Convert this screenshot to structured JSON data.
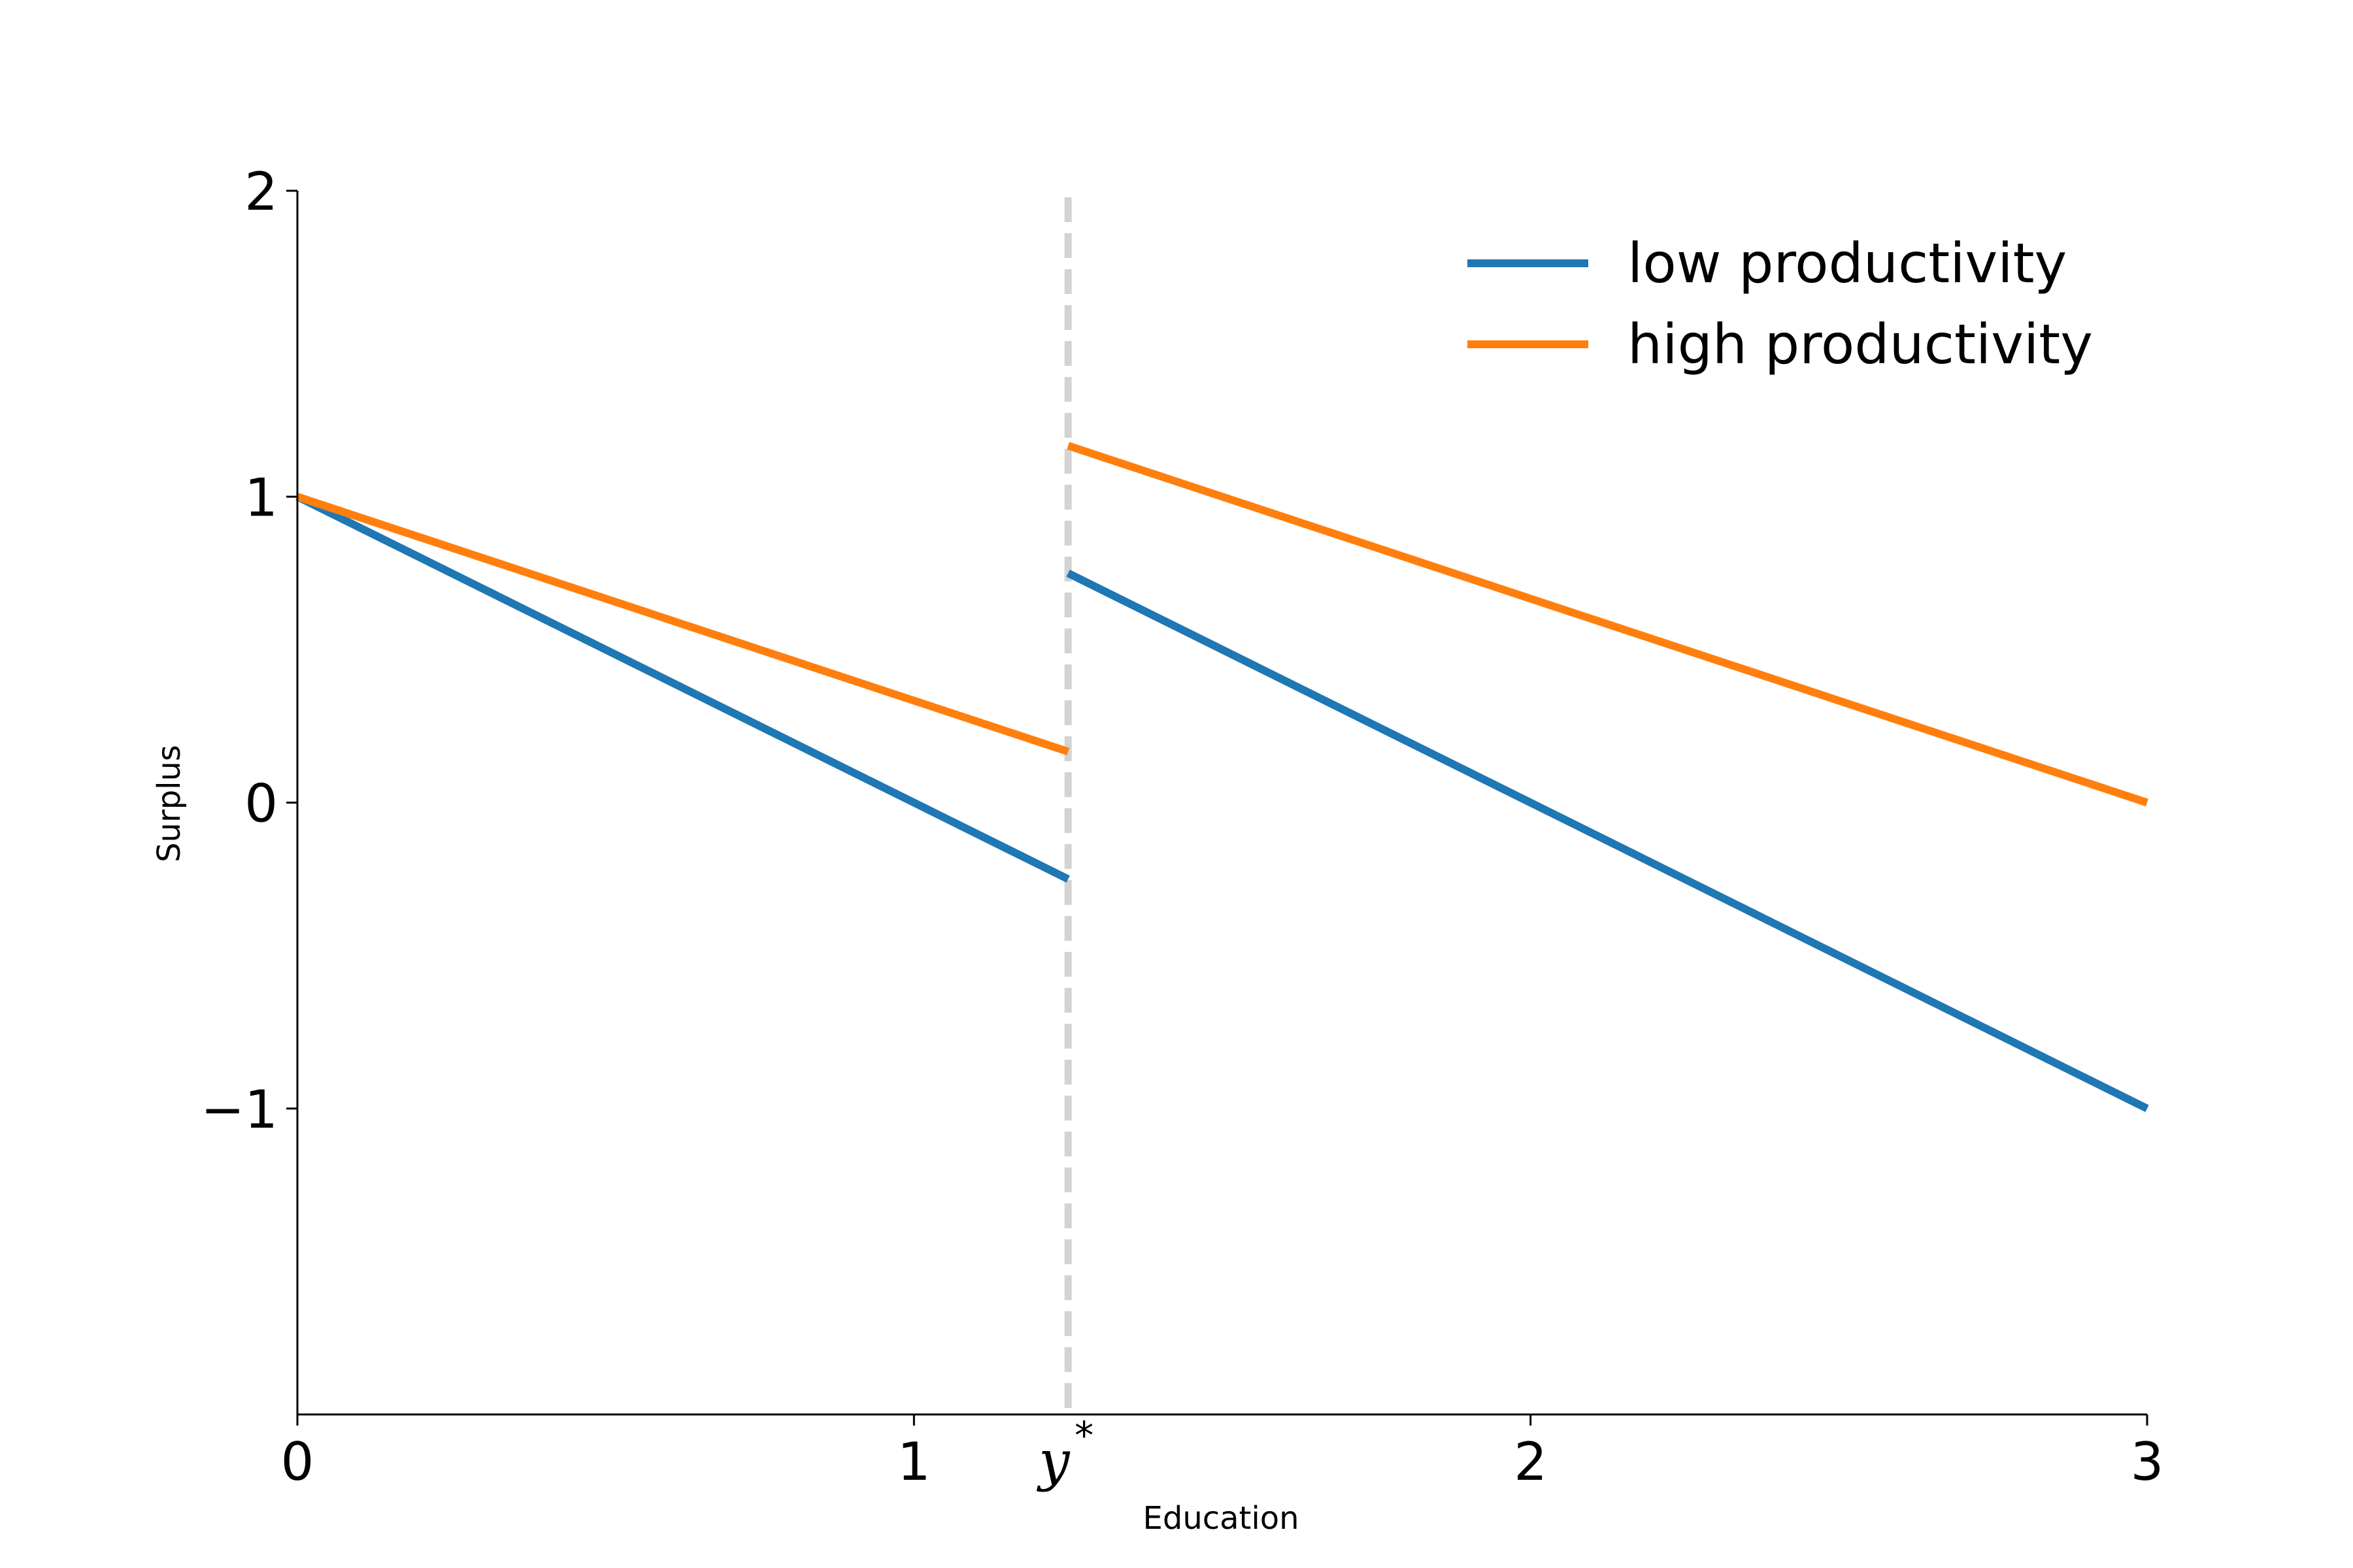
{
  "chart_data": {
    "type": "line",
    "title": "",
    "xlabel": "Education",
    "ylabel": "Surplus",
    "xlim": [
      0,
      3
    ],
    "ylim": [
      -2,
      2
    ],
    "x_ticks": [
      {
        "value": 0,
        "label": "0"
      },
      {
        "value": 1,
        "label": "1"
      },
      {
        "value": 2,
        "label": "2"
      },
      {
        "value": 3,
        "label": "3"
      }
    ],
    "y_ticks": [
      {
        "value": -1,
        "label": "−1"
      },
      {
        "value": 0,
        "label": "0"
      },
      {
        "value": 1,
        "label": "1"
      },
      {
        "value": 2,
        "label": "2"
      }
    ],
    "threshold": {
      "x": 1.25,
      "label": "y",
      "superscript": "*",
      "color": "#d3d3d3",
      "style": "dashed"
    },
    "grid": false,
    "legend_position": "top-right",
    "series": [
      {
        "name": "low productivity",
        "color": "#1f77b4",
        "segments": [
          [
            [
              0,
              1
            ],
            [
              1.25,
              -0.25
            ]
          ],
          [
            [
              1.25,
              0.75
            ],
            [
              3,
              -1
            ]
          ]
        ]
      },
      {
        "name": "high productivity",
        "color": "#ff7f0e",
        "segments": [
          [
            [
              0,
              1
            ],
            [
              1.25,
              0.1667
            ]
          ],
          [
            [
              1.25,
              1.1667
            ],
            [
              3,
              0
            ]
          ]
        ]
      }
    ]
  }
}
